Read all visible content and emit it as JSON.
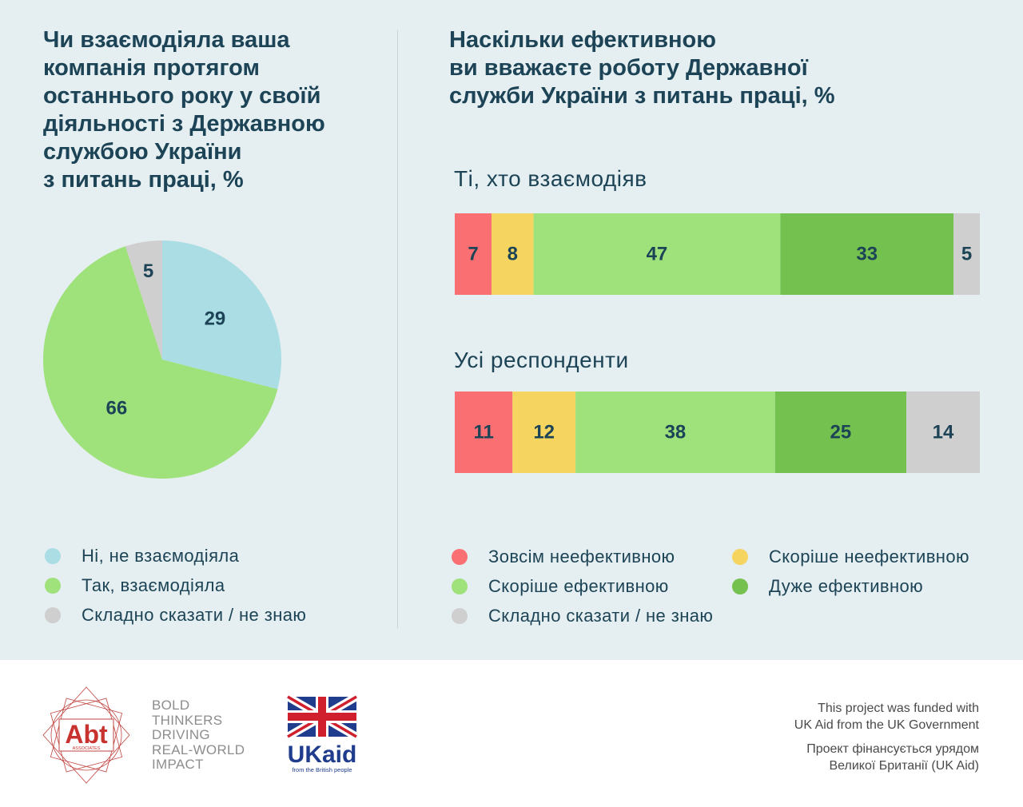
{
  "colors": {
    "panel_background": "#e5eef0",
    "text": "#1c4456",
    "no_interaction": "#abdde5",
    "yes_interaction": "#9fe27c",
    "hard_to_say": "#cfcfcf",
    "completely_ineffective": "#fa6f72",
    "rather_ineffective": "#f5d560",
    "rather_effective": "#9fe27c",
    "very_effective": "#74c14f"
  },
  "left": {
    "title": "Чи взаємодіяла ваша\nкомпанія протягом\nостаннього року у своїй\nдіяльності з Державною\nслужбою України\nз питань праці, %"
  },
  "right": {
    "title": "Наскільки ефективною\nви вважаєте роботу Державної\nслужби України з питань праці, %",
    "group1_label": "Ті, хто взаємодіяв",
    "group2_label": "Усі респонденти"
  },
  "chart_data": [
    {
      "type": "pie",
      "title": "Чи взаємодіяла ваша компанія протягом останнього року у своїй діяльності з Державною службою України з питань праці, %",
      "slices": [
        {
          "label": "Ні, не взаємодіяла",
          "value": 29,
          "color": "#abdde5"
        },
        {
          "label": "Так, взаємодіяла",
          "value": 66,
          "color": "#9fe27c"
        },
        {
          "label": "Складно сказати / не знаю",
          "value": 5,
          "color": "#cfcfcf"
        }
      ],
      "legend_position": "bottom"
    },
    {
      "type": "bar",
      "orientation": "horizontal",
      "stacked": true,
      "title": "Наскільки ефективною ви вважаєте роботу Державної служби України з питань праці, %",
      "categories": [
        "Ті, хто взаємодіяв",
        "Усі респонденти"
      ],
      "series": [
        {
          "name": "Зовсім неефективною",
          "values": [
            7,
            11
          ],
          "color": "#fa6f72"
        },
        {
          "name": "Скоріше неефективною",
          "values": [
            8,
            12
          ],
          "color": "#f5d560"
        },
        {
          "name": "Скоріше ефективною",
          "values": [
            47,
            38
          ],
          "color": "#9fe27c"
        },
        {
          "name": "Дуже ефективною",
          "values": [
            33,
            25
          ],
          "color": "#74c14f"
        },
        {
          "name": "Складно сказати / не знаю",
          "values": [
            5,
            14
          ],
          "color": "#cfcfcf"
        }
      ],
      "legend_position": "bottom"
    }
  ],
  "footer": {
    "abt_logo_text": "Abt",
    "abt_logo_subtext": "ASSOCIATES",
    "abt_tagline": "BOLD\nTHINKERS\nDRIVING\nREAL-WORLD\nIMPACT",
    "ukaid_text": "UKaid",
    "ukaid_subtext": "from the British people",
    "funding_en": "This project was funded with\nUK Aid from the UK Government",
    "funding_uk": "Проект фінансується урядом\nВеликої Британії (UK Aid)"
  }
}
